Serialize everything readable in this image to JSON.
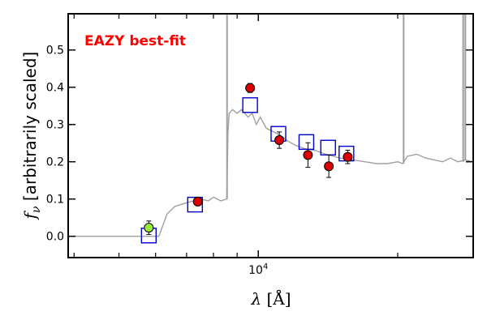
{
  "chart_data": {
    "type": "scatter",
    "title": "",
    "xlabel": "λ [Å]",
    "ylabel": "f_ν [arbitrarily scaled]",
    "x_scale": "log",
    "xlim": [
      3900,
      29000
    ],
    "ylim": [
      -0.055,
      0.595
    ],
    "y_ticks": [
      "0.0",
      "0.1",
      "0.2",
      "0.3",
      "0.4",
      "0.5"
    ],
    "x_tick_label": "10^4",
    "grid": false,
    "annotations": [
      {
        "text": "EAZY best-fit",
        "color": "#ff0000",
        "position": "top-left"
      }
    ],
    "series": [
      {
        "kind": "template_spectrum",
        "color": "#a0a0a0",
        "points": [
          [
            3900,
            0.0
          ],
          [
            6100,
            0.0
          ],
          [
            6350,
            0.06
          ],
          [
            6600,
            0.08
          ],
          [
            7000,
            0.09
          ],
          [
            7500,
            0.1
          ],
          [
            7800,
            0.095
          ],
          [
            8000,
            0.105
          ],
          [
            8300,
            0.095
          ],
          [
            8550,
            0.1
          ],
          [
            8600,
            0.28
          ],
          [
            8650,
            0.33
          ],
          [
            8800,
            0.34
          ],
          [
            9000,
            0.33
          ],
          [
            9200,
            0.34
          ],
          [
            9500,
            0.32
          ],
          [
            9700,
            0.33
          ],
          [
            9900,
            0.3
          ],
          [
            10100,
            0.32
          ],
          [
            10400,
            0.29
          ],
          [
            10800,
            0.28
          ],
          [
            11200,
            0.27
          ],
          [
            11600,
            0.255
          ],
          [
            12000,
            0.245
          ],
          [
            12600,
            0.235
          ],
          [
            13300,
            0.23
          ],
          [
            14000,
            0.22
          ],
          [
            15000,
            0.21
          ],
          [
            16000,
            0.205
          ],
          [
            17000,
            0.2
          ],
          [
            18000,
            0.195
          ],
          [
            19000,
            0.195
          ],
          [
            20000,
            0.2
          ],
          [
            20500,
            0.195
          ],
          [
            21000,
            0.215
          ],
          [
            22000,
            0.22
          ],
          [
            23000,
            0.21
          ],
          [
            24000,
            0.205
          ],
          [
            25000,
            0.2
          ],
          [
            26000,
            0.21
          ],
          [
            27000,
            0.2
          ],
          [
            28000,
            0.205
          ],
          [
            29000,
            0.2
          ]
        ],
        "emission_lines": [
          {
            "x": 8560,
            "y_top": 0.595
          },
          {
            "x": 20600,
            "y_top": 0.595
          },
          {
            "x": 27700,
            "y_top": 0.595
          },
          {
            "x": 28000,
            "y_top": 0.595
          }
        ]
      },
      {
        "kind": "model_photometry",
        "marker": "square",
        "color": "#0000cc",
        "points": [
          [
            5800,
            0.002
          ],
          [
            7300,
            0.085
          ],
          [
            9600,
            0.352
          ],
          [
            11050,
            0.275
          ],
          [
            12700,
            0.253
          ],
          [
            14150,
            0.238
          ],
          [
            15500,
            0.222
          ]
        ]
      },
      {
        "kind": "observed_photometry",
        "marker": "circle",
        "color": "#dd0000",
        "points": [
          {
            "x": 7400,
            "y": 0.093,
            "err": 0.007
          },
          {
            "x": 9600,
            "y": 0.398,
            "err": 0.012
          },
          {
            "x": 11100,
            "y": 0.258,
            "err": 0.022
          },
          {
            "x": 12800,
            "y": 0.218,
            "err": 0.033
          },
          {
            "x": 14200,
            "y": 0.188,
            "err": 0.03
          },
          {
            "x": 15600,
            "y": 0.213,
            "err": 0.018
          }
        ]
      },
      {
        "kind": "observed_photometry_flagged",
        "marker": "circle",
        "color": "#99ee33",
        "points": [
          {
            "x": 5800,
            "y": 0.023,
            "err": 0.018
          }
        ]
      }
    ]
  }
}
